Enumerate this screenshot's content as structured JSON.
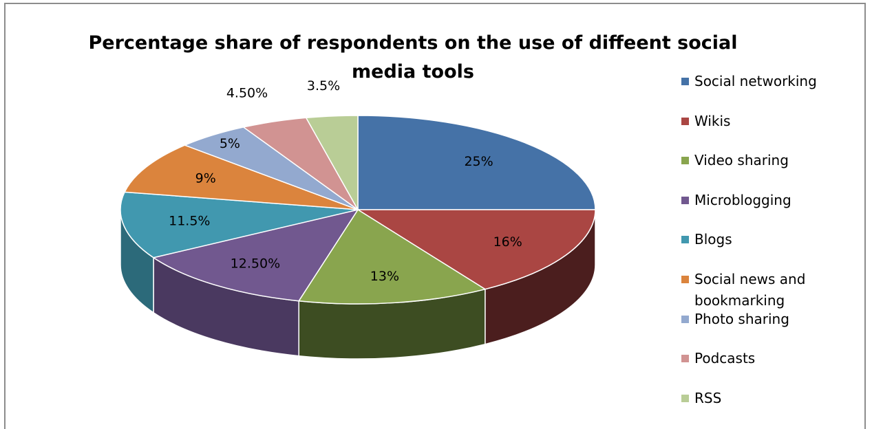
{
  "chart_data": {
    "type": "pie",
    "title": "Percentage share of respondents on the use of diffeent social media tools",
    "title_lines": [
      "Percentage share of respondents on the use of diffeent social",
      "media tools"
    ],
    "three_d": true,
    "legend_position": "right",
    "categories": [
      "Social networking",
      "Wikis",
      "Video sharing",
      "Microblogging",
      "Blogs",
      "Social news and bookmarking",
      "Photo sharing",
      "Podcasts",
      "RSS"
    ],
    "values": [
      25,
      16,
      13,
      12.5,
      11.5,
      9,
      5,
      4.5,
      3.5
    ],
    "data_labels": [
      "25%",
      "16%",
      "13%",
      "12.50%",
      "11.5%",
      "9%",
      "5%",
      "4.50%",
      "3.5%"
    ],
    "colors": [
      "#4572A7",
      "#AA4643",
      "#89A54E",
      "#71588F",
      "#4198AF",
      "#DB843D",
      "#93A9CF",
      "#D19392",
      "#B9CD96"
    ],
    "side_colors": [
      "#2E4D73",
      "#4B1E1E",
      "#3D4D22",
      "#4A3960",
      "#2C6A7A",
      "#8E5527",
      "#6B7C99",
      "#A06C6B",
      "#8A9B6C"
    ]
  }
}
